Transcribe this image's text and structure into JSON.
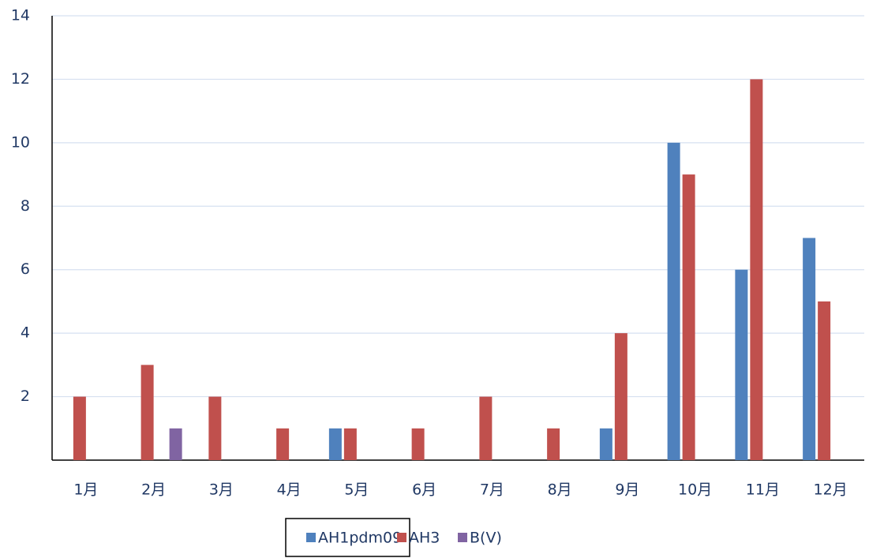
{
  "chart_data": {
    "type": "bar",
    "categories": [
      "1月",
      "2月",
      "3月",
      "4月",
      "5月",
      "6月",
      "7月",
      "8月",
      "9月",
      "10月",
      "11月",
      "12月"
    ],
    "series": [
      {
        "name": "AH1pdm09",
        "color": "#4f81bd",
        "values": [
          0,
          0,
          0,
          0,
          1,
          0,
          0,
          0,
          1,
          10,
          6,
          7
        ]
      },
      {
        "name": "AH3",
        "color": "#c0504d",
        "values": [
          2,
          3,
          2,
          1,
          1,
          1,
          2,
          1,
          4,
          9,
          12,
          5
        ]
      },
      {
        "name": "B(V)",
        "color": "#8064a2",
        "values": [
          0,
          1,
          0,
          0,
          0,
          0,
          0,
          0,
          0,
          0,
          0,
          0
        ]
      }
    ],
    "ylim": [
      0,
      14
    ],
    "yticks": [
      2,
      4,
      6,
      8,
      10,
      12,
      14
    ],
    "grid": true,
    "legend": "bottom"
  }
}
